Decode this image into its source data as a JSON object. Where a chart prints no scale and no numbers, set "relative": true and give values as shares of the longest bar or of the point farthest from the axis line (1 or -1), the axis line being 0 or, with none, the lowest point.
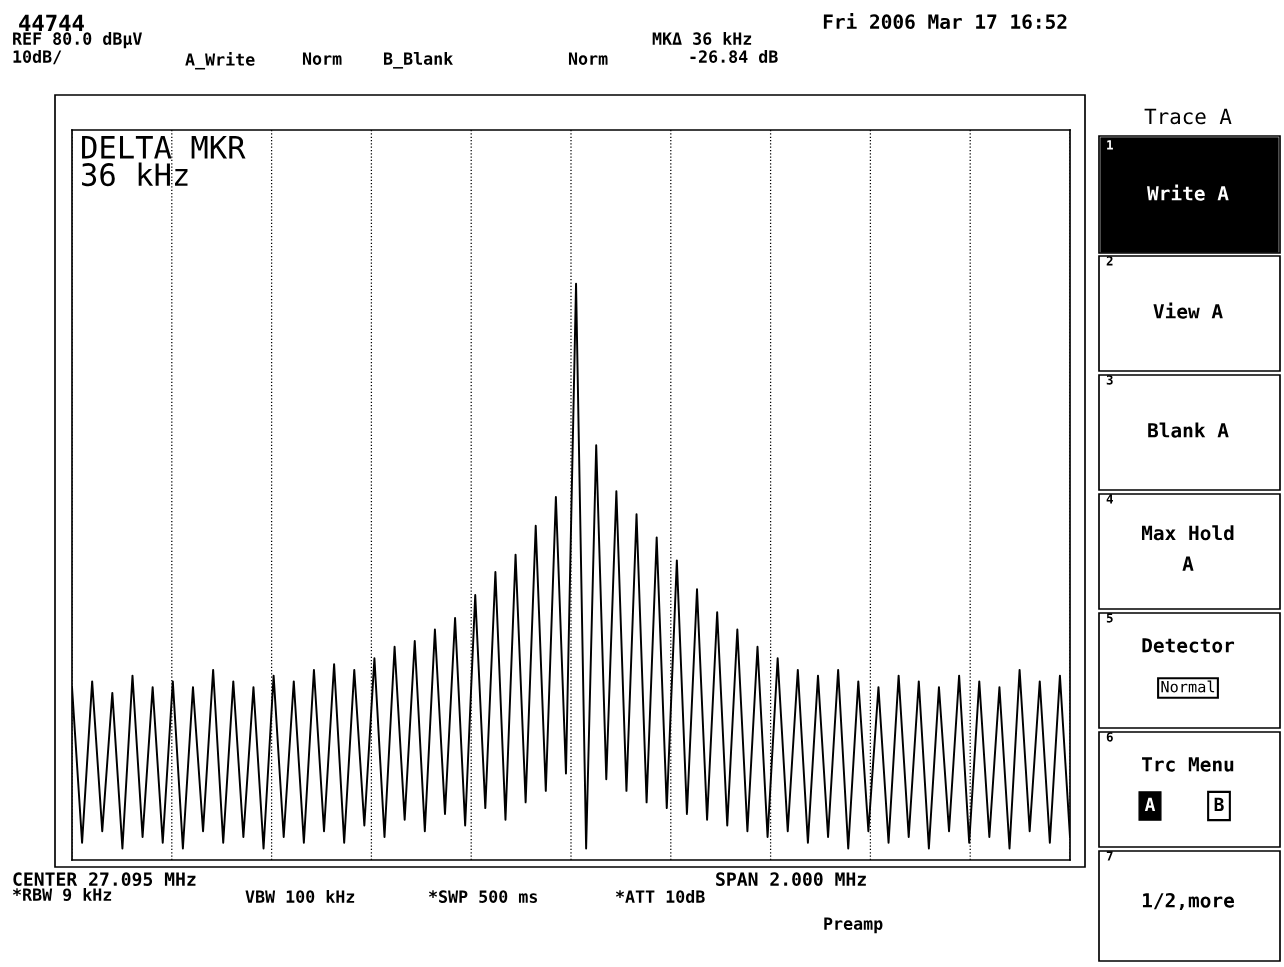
{
  "chart_data": {
    "type": "line",
    "relative": true,
    "color": "#000000",
    "grid": true,
    "marker": "none",
    "line_style": "solid",
    "categories": [
      null,
      null,
      null,
      null,
      null,
      null,
      null,
      null,
      null,
      null,
      null,
      null,
      null,
      null,
      null,
      null,
      null,
      null,
      null,
      null,
      null,
      null,
      null,
      null,
      null,
      null,
      null,
      null,
      null,
      null,
      null,
      null,
      null,
      null,
      null,
      null,
      null,
      null,
      null,
      null,
      null,
      null,
      null,
      null,
      null,
      null,
      null,
      null,
      null,
      null,
      null,
      null,
      null,
      null,
      null,
      null,
      null,
      null,
      null,
      null,
      null,
      null,
      null,
      null,
      null,
      null,
      null,
      null,
      null,
      null,
      null,
      null,
      null,
      null,
      null,
      null,
      null,
      null,
      null,
      null,
      null,
      null,
      null,
      null,
      null,
      null,
      null,
      null,
      null,
      null,
      null,
      null,
      null,
      null,
      null,
      null,
      null,
      null,
      null,
      null
    ],
    "values": [
      0.3,
      0.03,
      0.31,
      0.05,
      0.29,
      0.02,
      0.32,
      0.04,
      0.3,
      0.03,
      0.31,
      0.02,
      0.3,
      0.05,
      0.33,
      0.03,
      0.31,
      0.04,
      0.3,
      0.02,
      0.32,
      0.04,
      0.31,
      0.03,
      0.33,
      0.05,
      0.34,
      0.03,
      0.33,
      0.06,
      0.35,
      0.04,
      0.37,
      0.07,
      0.38,
      0.05,
      0.4,
      0.08,
      0.42,
      0.06,
      0.46,
      0.09,
      0.5,
      0.07,
      0.53,
      0.1,
      0.58,
      0.12,
      0.63,
      0.15,
      1.0,
      0.02,
      0.72,
      0.14,
      0.64,
      0.12,
      0.6,
      0.1,
      0.56,
      0.09,
      0.52,
      0.08,
      0.47,
      0.07,
      0.43,
      0.06,
      0.4,
      0.05,
      0.37,
      0.04,
      0.35,
      0.05,
      0.33,
      0.03,
      0.32,
      0.04,
      0.33,
      0.02,
      0.31,
      0.05,
      0.3,
      0.03,
      0.32,
      0.04,
      0.31,
      0.02,
      0.3,
      0.05,
      0.32,
      0.03,
      0.31,
      0.04,
      0.3,
      0.02,
      0.33,
      0.05,
      0.31,
      0.03,
      0.32,
      0.04
    ],
    "annotations": [
      "44744",
      "Fri 2006 Mar 17 16:52",
      "REF 80.0 dBµV",
      "10dB/",
      "A_Write",
      "Norm",
      "B_Blank",
      "Norm",
      "MKΔ 36 kHz",
      "-26.84 dB",
      "DELTA MKR\n36 kHz",
      "CENTER 27.095 MHz",
      "SPAN 2.000 MHz",
      "*RBW 9 kHz",
      "VBW 100 kHz",
      "*SWP 500 ms",
      "*ATT 10dB",
      "Preamp",
      "Trace A",
      "1",
      "Write A",
      "2",
      "View A",
      "3",
      "Blank A",
      "4",
      "Max Hold\nA",
      "5",
      "Detector",
      "Normal",
      "6",
      "Trc Menu",
      "A",
      "B",
      "7",
      "1/2,more"
    ]
  }
}
